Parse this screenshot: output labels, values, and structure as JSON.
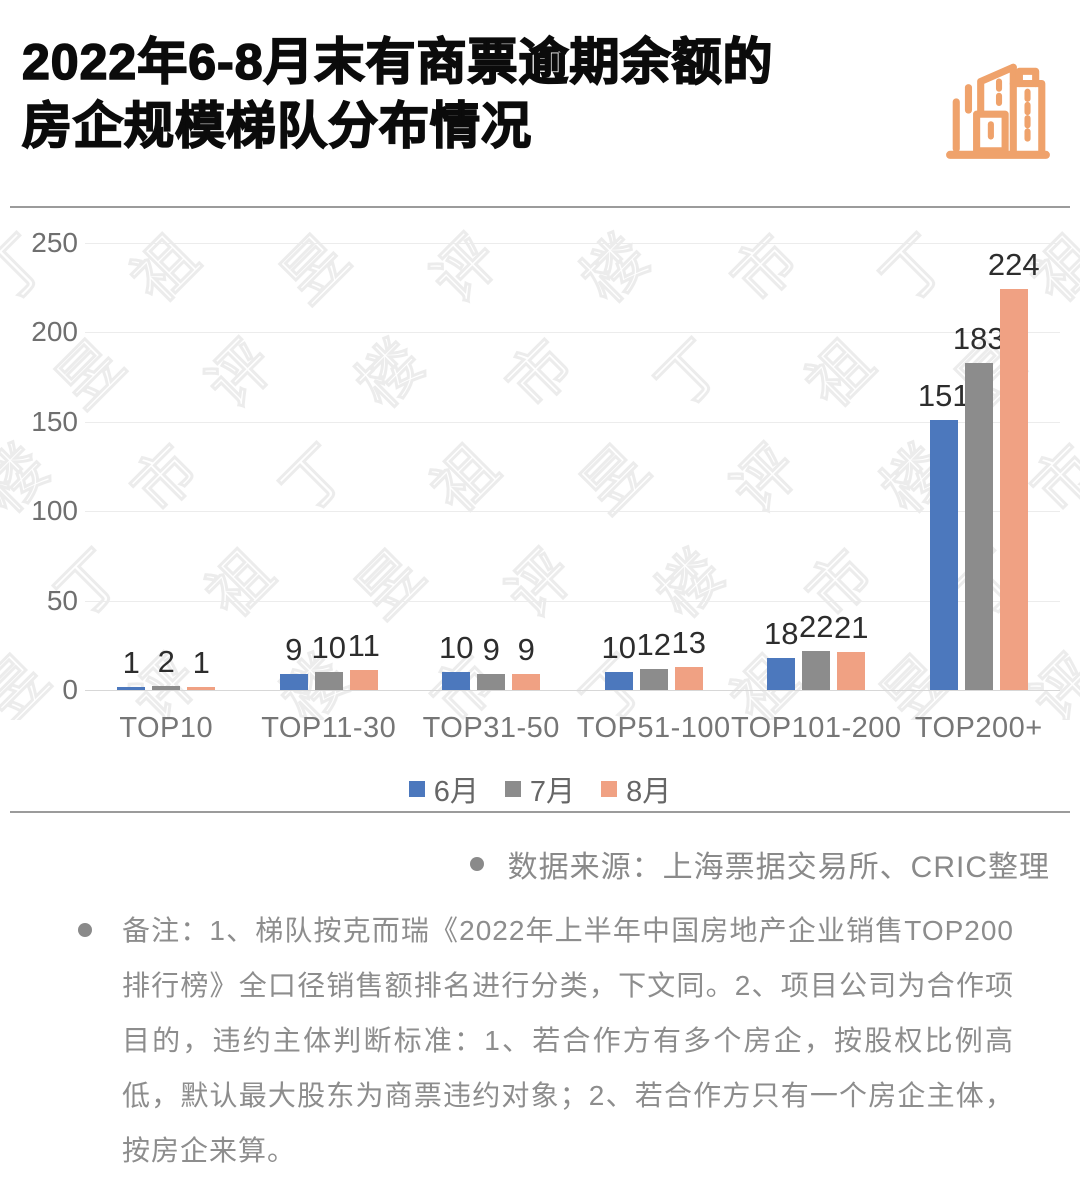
{
  "header": {
    "title_line1": "2022年6-8月末有商票逾期余额的",
    "title_line2": "房企规模梯队分布情况",
    "icon_color": "#EFA26B"
  },
  "chart_data": {
    "type": "bar",
    "title": "2022年6-8月末有商票逾期余额的房企规模梯队分布情况",
    "categories": [
      "TOP10",
      "TOP11-30",
      "TOP31-50",
      "TOP51-100",
      "TOP101-200",
      "TOP200+"
    ],
    "series": [
      {
        "name": "6月",
        "color": "#4C78BD",
        "values": [
          1,
          9,
          10,
          10,
          18,
          151
        ]
      },
      {
        "name": "7月",
        "color": "#8C8C8C",
        "values": [
          2,
          10,
          9,
          12,
          22,
          183
        ]
      },
      {
        "name": "8月",
        "color": "#F0A183",
        "values": [
          1,
          11,
          9,
          13,
          21,
          224
        ]
      }
    ],
    "ylim": [
      0,
      250
    ],
    "yticks": [
      250,
      200,
      150,
      100,
      50,
      0
    ],
    "grid": true,
    "legend_position": "bottom"
  },
  "watermark": {
    "text": "丁祖昱评楼市"
  },
  "source": {
    "text": "数据来源：上海票据交易所、CRIC整理"
  },
  "notes": {
    "text": "备注：1、梯队按克而瑞《2022年上半年中国房地产企业销售TOP200排行榜》全口径销售额排名进行分类，下文同。2、项目公司为合作项目的，违约主体判断标准：1、若合作方有多个房企，按股权比例高低，默认最大股东为商票违约对象；2、若合作方只有一个房企主体，按房企来算。"
  }
}
